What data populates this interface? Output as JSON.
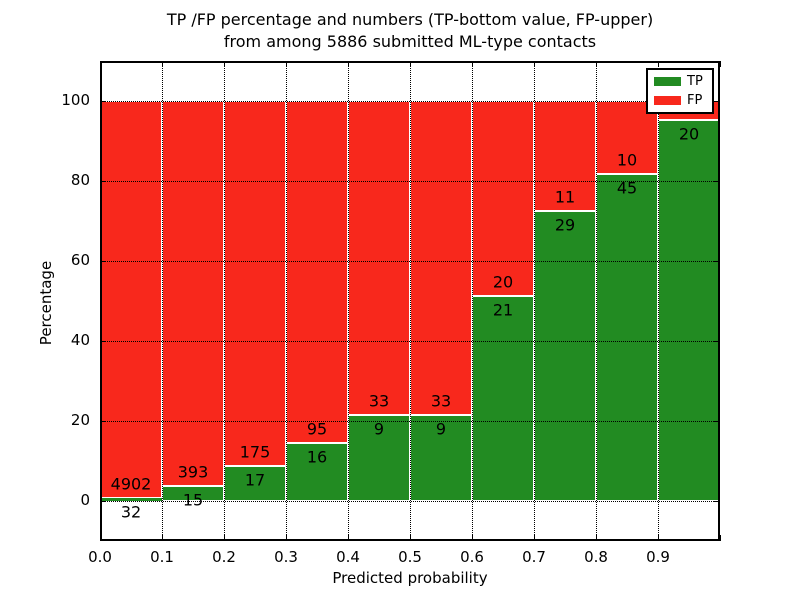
{
  "title": {
    "line1": "TP /FP percentage and numbers (TP-bottom value, FP-upper)",
    "line2": "from among 5886 submitted ML-type contacts"
  },
  "chart_data": {
    "type": "bar",
    "stacked": true,
    "normalized": "each bin stacks to 100%",
    "title": "TP /FP percentage and numbers (TP-bottom value, FP-upper) from among 5886 submitted ML-type contacts",
    "xlabel": "Predicted probability",
    "ylabel": "Percentage",
    "xlim": [
      0.0,
      1.0
    ],
    "ylim": [
      -10,
      110
    ],
    "bin_width": 0.1,
    "bin_starts": [
      0.0,
      0.1,
      0.2,
      0.3,
      0.4,
      0.5,
      0.6,
      0.7,
      0.8,
      0.9
    ],
    "x_tick_labels": [
      "0.0",
      "0.1",
      "0.2",
      "0.3",
      "0.4",
      "0.5",
      "0.6",
      "0.7",
      "0.8",
      "0.9"
    ],
    "y_tick_values": [
      0,
      20,
      40,
      60,
      80,
      100
    ],
    "y_tick_labels": [
      "0",
      "20",
      "40",
      "60",
      "80",
      "100"
    ],
    "grid": {
      "style": "dotted",
      "color": "#000000",
      "above_bars": true
    },
    "bar_edge_color": "#ffffff",
    "series": [
      {
        "name": "TP",
        "color": "#228b22",
        "counts": [
          32,
          15,
          17,
          16,
          9,
          9,
          21,
          29,
          45,
          20
        ],
        "bar_labels": [
          "32",
          "15",
          "17",
          "16",
          "9",
          "9",
          "21",
          "29",
          "45",
          "20"
        ]
      },
      {
        "name": "FP",
        "color": "#f8281c",
        "counts": [
          4902,
          393,
          175,
          95,
          33,
          33,
          20,
          11,
          10,
          1
        ],
        "bar_labels": [
          "4902",
          "393",
          "175",
          "95",
          "33",
          "33",
          "20",
          "11",
          "10",
          ""
        ]
      }
    ],
    "legend": {
      "position": "upper-right",
      "entries": [
        {
          "label": "TP",
          "color": "#228b22"
        },
        {
          "label": "FP",
          "color": "#f8281c"
        }
      ]
    }
  }
}
